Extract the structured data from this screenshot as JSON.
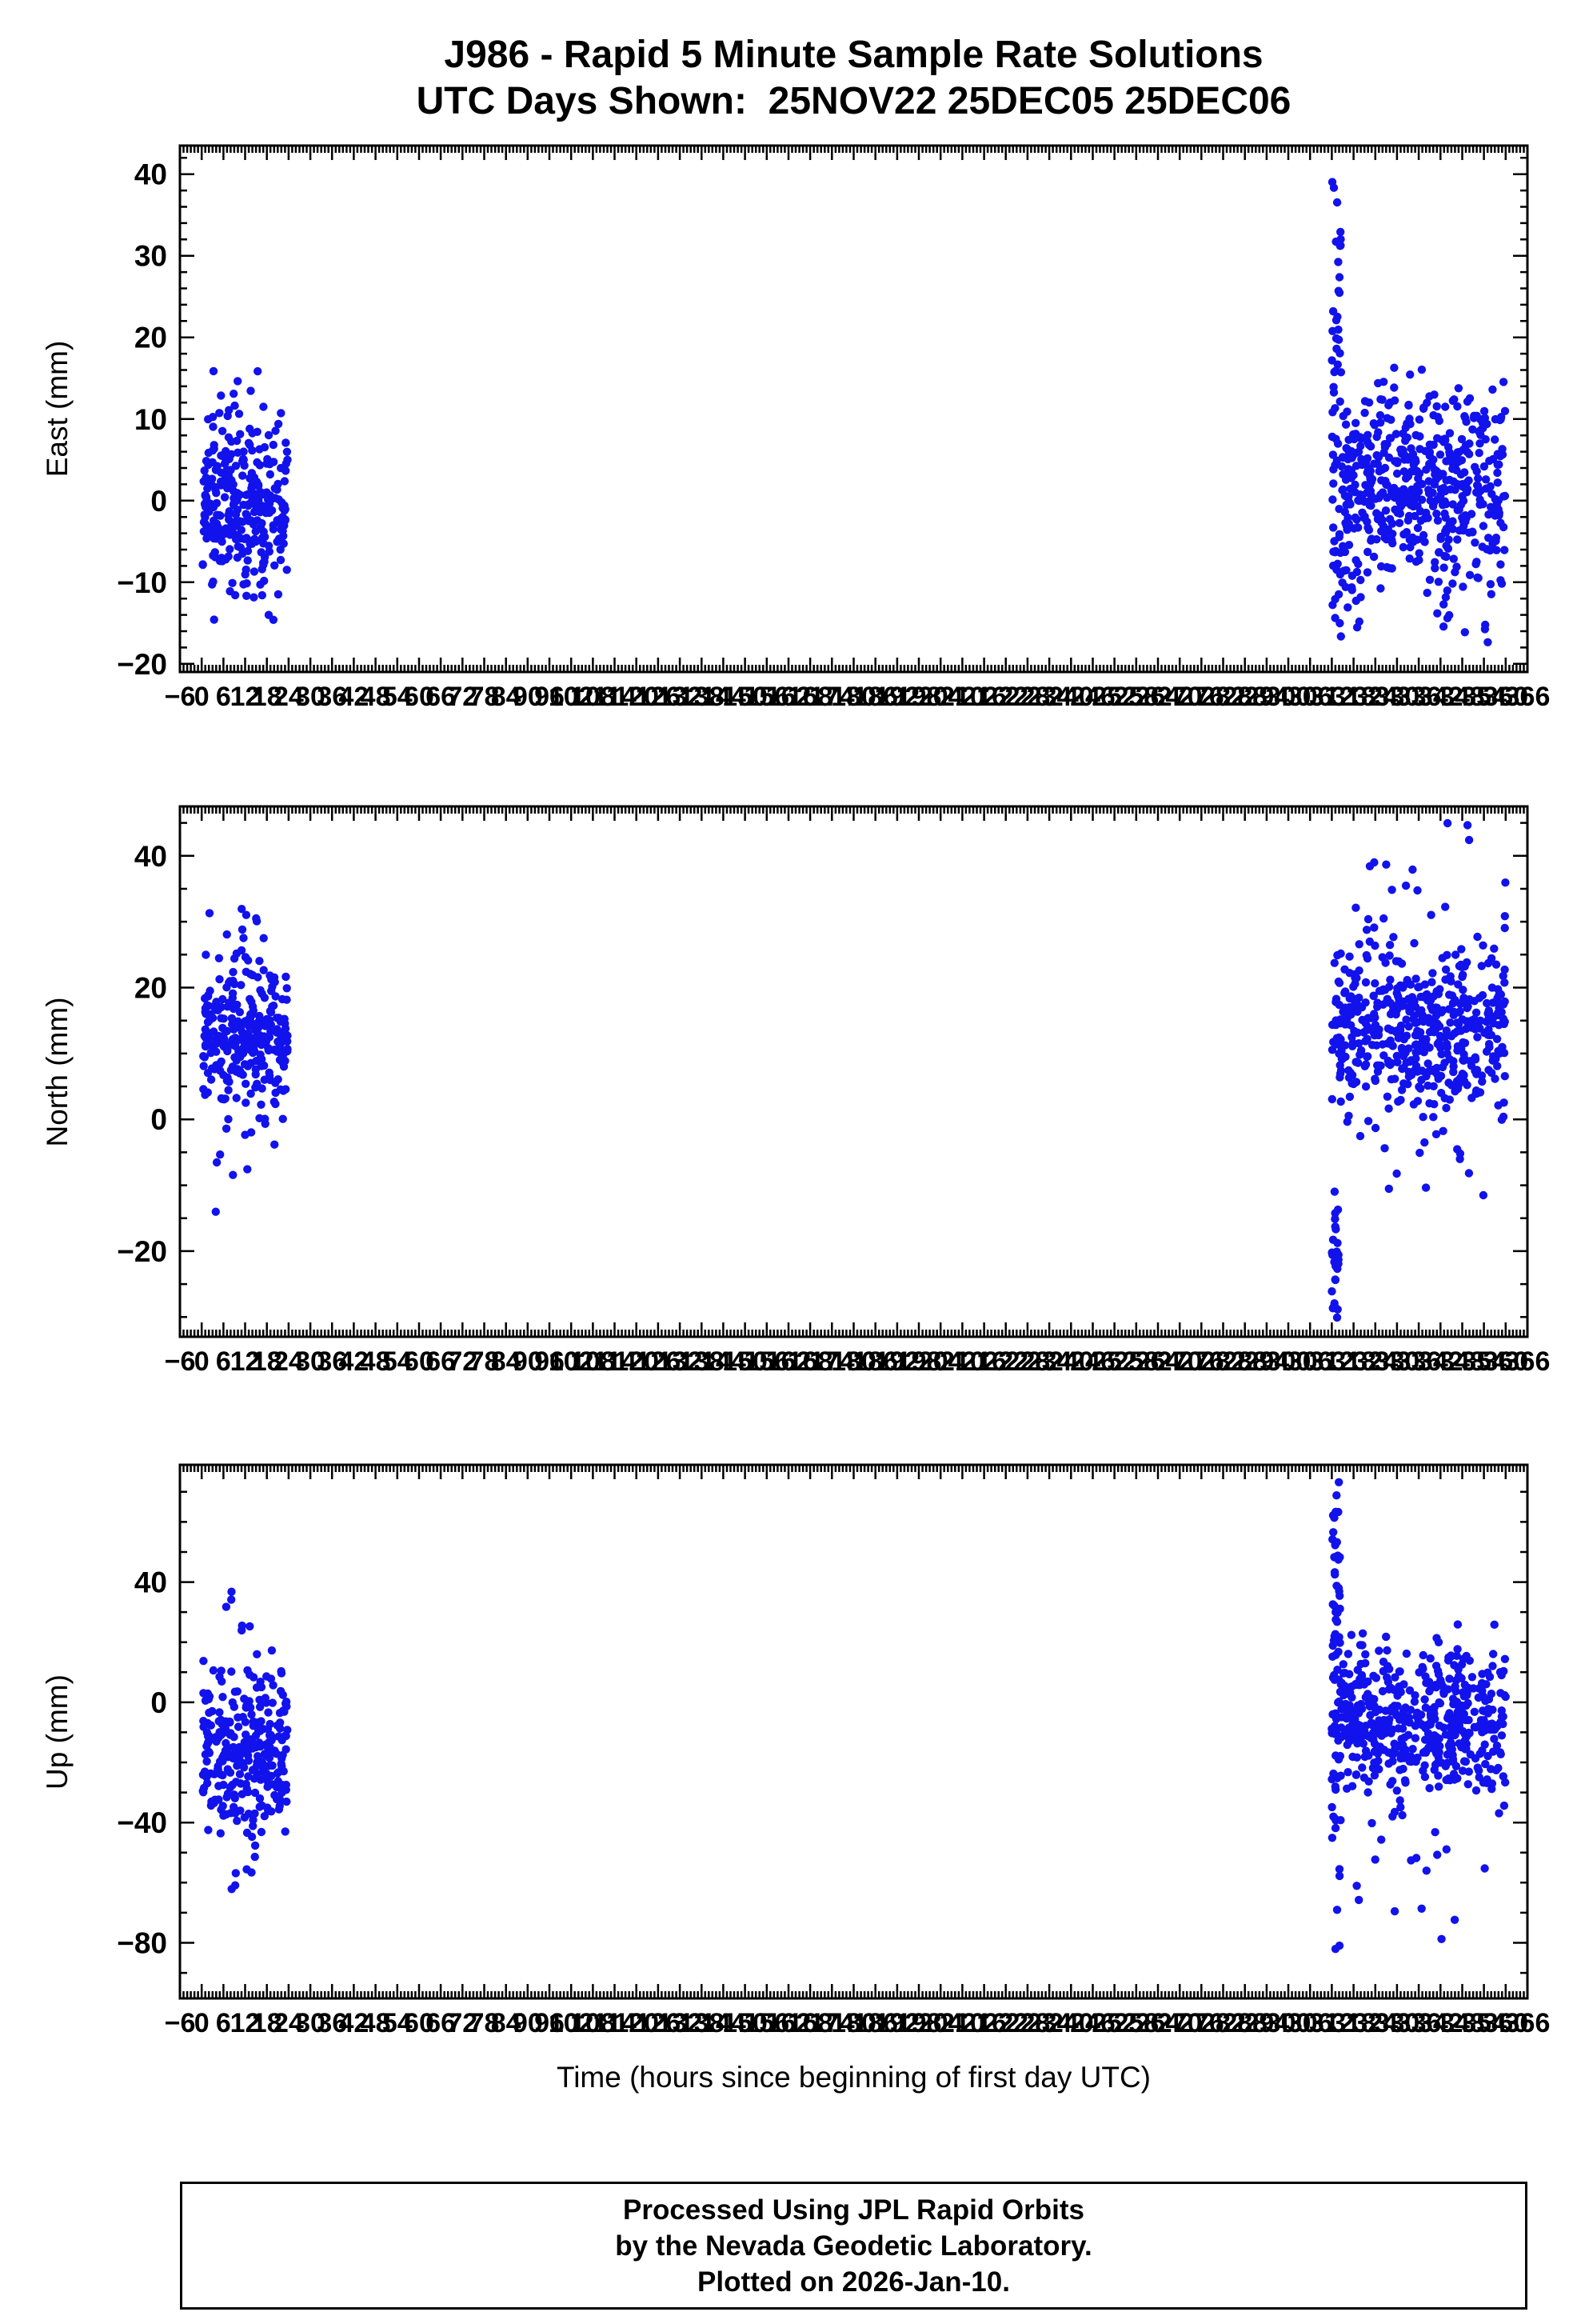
{
  "title_line1": "J986 - Rapid 5 Minute Sample Rate Solutions",
  "title_line2": "UTC Days Shown:  25NOV22 25DEC05 25DEC06",
  "xlabel": "Time (hours since beginning of first day UTC)",
  "footer": {
    "line1": "Processed Using JPL Rapid Orbits",
    "line2": "by the Nevada Geodetic Laboratory.",
    "line3": "Plotted on 2026-Jan-10."
  },
  "style": {
    "point_color": "#1212ec",
    "axis_color": "#000000",
    "point_radius": 5.2
  },
  "chart_data": [
    {
      "type": "scatter",
      "name": "east",
      "ylabel": "East (mm)",
      "xlim": [
        -6,
        366
      ],
      "xtick_major": 6,
      "xtick_minor": 1,
      "ylim": [
        -21,
        43.5
      ],
      "ytick_major": 10,
      "ytick_minor": 2,
      "seed": 101,
      "clusters": [
        {
          "x0": 0.3,
          "x1": 23.7,
          "n": 290,
          "mean": 0,
          "sd": 5.0,
          "ymin": -13,
          "ymax": 13
        },
        {
          "x0": 1,
          "x1": 23,
          "n": 10,
          "mean": 12,
          "sd": 2.5,
          "ymin": 9,
          "ymax": 16.5
        },
        {
          "x0": 2,
          "x1": 20,
          "n": 6,
          "mean": -12.5,
          "sd": 1.8,
          "ymin": -15,
          "ymax": -10
        },
        {
          "x0": 312,
          "x1": 314.5,
          "n": 28,
          "mean": 25,
          "sd": 9,
          "ymin": 10,
          "ymax": 41.5
        },
        {
          "x0": 312,
          "x1": 360,
          "n": 520,
          "mean": 2,
          "sd": 6,
          "ymin": -14,
          "ymax": 17
        },
        {
          "x0": 312,
          "x1": 321,
          "n": 25,
          "mean": -10,
          "sd": 4,
          "ymin": -17,
          "ymax": -2
        },
        {
          "x0": 338,
          "x1": 360,
          "n": 22,
          "mean": -12,
          "sd": 4.5,
          "ymin": -20.5,
          "ymax": -4
        }
      ]
    },
    {
      "type": "scatter",
      "name": "north",
      "ylabel": "North (mm)",
      "xlim": [
        -6,
        366
      ],
      "xtick_major": 6,
      "xtick_minor": 1,
      "ylim": [
        -33,
        47.5
      ],
      "ytick_major": 20,
      "ytick_minor": 5,
      "seed": 202,
      "clusters": [
        {
          "x0": 0.3,
          "x1": 23.7,
          "n": 290,
          "mean": 13,
          "sd": 6,
          "ymin": -4,
          "ymax": 29
        },
        {
          "x0": 2,
          "x1": 16,
          "n": 8,
          "mean": 30,
          "sd": 2,
          "ymin": 27,
          "ymax": 32.5
        },
        {
          "x0": 3,
          "x1": 13,
          "n": 5,
          "mean": -9,
          "sd": 4,
          "ymin": -15.5,
          "ymax": -2
        },
        {
          "x0": 312,
          "x1": 314,
          "n": 26,
          "mean": -20,
          "sd": 7,
          "ymin": -31,
          "ymax": -8
        },
        {
          "x0": 312,
          "x1": 360,
          "n": 520,
          "mean": 14,
          "sd": 6,
          "ymin": -3,
          "ymax": 30
        },
        {
          "x0": 318,
          "x1": 360,
          "n": 14,
          "mean": 33,
          "sd": 4,
          "ymin": 28,
          "ymax": 40
        },
        {
          "x0": 326,
          "x1": 352,
          "n": 3,
          "mean": 43,
          "sd": 2,
          "ymin": 40,
          "ymax": 46
        },
        {
          "x0": 320,
          "x1": 358,
          "n": 12,
          "mean": -7,
          "sd": 4,
          "ymin": -14,
          "ymax": 1
        }
      ]
    },
    {
      "type": "scatter",
      "name": "up",
      "ylabel": "Up (mm)",
      "xlim": [
        -6,
        366
      ],
      "xtick_major": 6,
      "xtick_minor": 1,
      "ylim": [
        -98.5,
        79
      ],
      "ytick_major": 40,
      "ytick_minor": 10,
      "seed": 303,
      "clusters": [
        {
          "x0": 0.3,
          "x1": 23.7,
          "n": 290,
          "mean": -16,
          "sd": 14,
          "ymin": -52,
          "ymax": 20
        },
        {
          "x0": 4,
          "x1": 16,
          "n": 6,
          "mean": 30,
          "sd": 6,
          "ymin": 22,
          "ymax": 40
        },
        {
          "x0": 3,
          "x1": 15,
          "n": 5,
          "mean": -58,
          "sd": 6,
          "ymin": -69,
          "ymax": -50
        },
        {
          "x0": 312,
          "x1": 315,
          "n": 35,
          "mean": 35,
          "sd": 22,
          "ymin": 0,
          "ymax": 77
        },
        {
          "x0": 312,
          "x1": 314.5,
          "n": 14,
          "mean": -55,
          "sd": 28,
          "ymin": -101,
          "ymax": -15
        },
        {
          "x0": 312,
          "x1": 360,
          "n": 520,
          "mean": -7,
          "sd": 13,
          "ymin": -40,
          "ymax": 26
        },
        {
          "x0": 316,
          "x1": 356,
          "n": 14,
          "mean": -52,
          "sd": 10,
          "ymin": -70,
          "ymax": -36
        },
        {
          "x0": 330,
          "x1": 352,
          "n": 3,
          "mean": -74,
          "sd": 4,
          "ymin": -80,
          "ymax": -68
        }
      ]
    }
  ]
}
